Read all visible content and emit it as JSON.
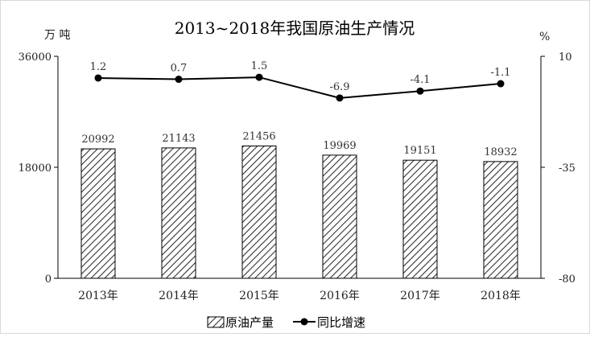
{
  "chart_data": {
    "type": "bar+line",
    "title": "2013~2018年我国原油生产情况",
    "left_unit": "万 吨",
    "right_unit": "%",
    "categories": [
      "2013年",
      "2014年",
      "2015年",
      "2016年",
      "2017年",
      "2018年"
    ],
    "y_left": {
      "min": 0,
      "max": 36000,
      "ticks": [
        "0",
        "18000",
        "36000"
      ]
    },
    "y_right": {
      "min": -80,
      "max": 10,
      "ticks": [
        "-80",
        "-35",
        "10"
      ]
    },
    "series": [
      {
        "name": "原油产量",
        "kind": "bar",
        "axis": "left",
        "values": [
          20992,
          21143,
          21456,
          19969,
          19151,
          18932
        ],
        "labels": [
          "20992",
          "21143",
          "21456",
          "19969",
          "19151",
          "18932"
        ]
      },
      {
        "name": "同比增速",
        "kind": "line",
        "axis": "right",
        "values": [
          1.2,
          0.7,
          1.5,
          -6.9,
          -4.1,
          -1.1
        ],
        "labels": [
          "1.2",
          "0.7",
          "1.5",
          "-6.9",
          "-4.1",
          "-1.1"
        ]
      }
    ],
    "grid": false,
    "legend": "bottom-center",
    "bar_pattern": "diagonal-hatch",
    "colors": {
      "bar_fill": "#ffffff",
      "bar_hatch": "#333333",
      "line": "#000000",
      "axis": "#000000"
    }
  }
}
